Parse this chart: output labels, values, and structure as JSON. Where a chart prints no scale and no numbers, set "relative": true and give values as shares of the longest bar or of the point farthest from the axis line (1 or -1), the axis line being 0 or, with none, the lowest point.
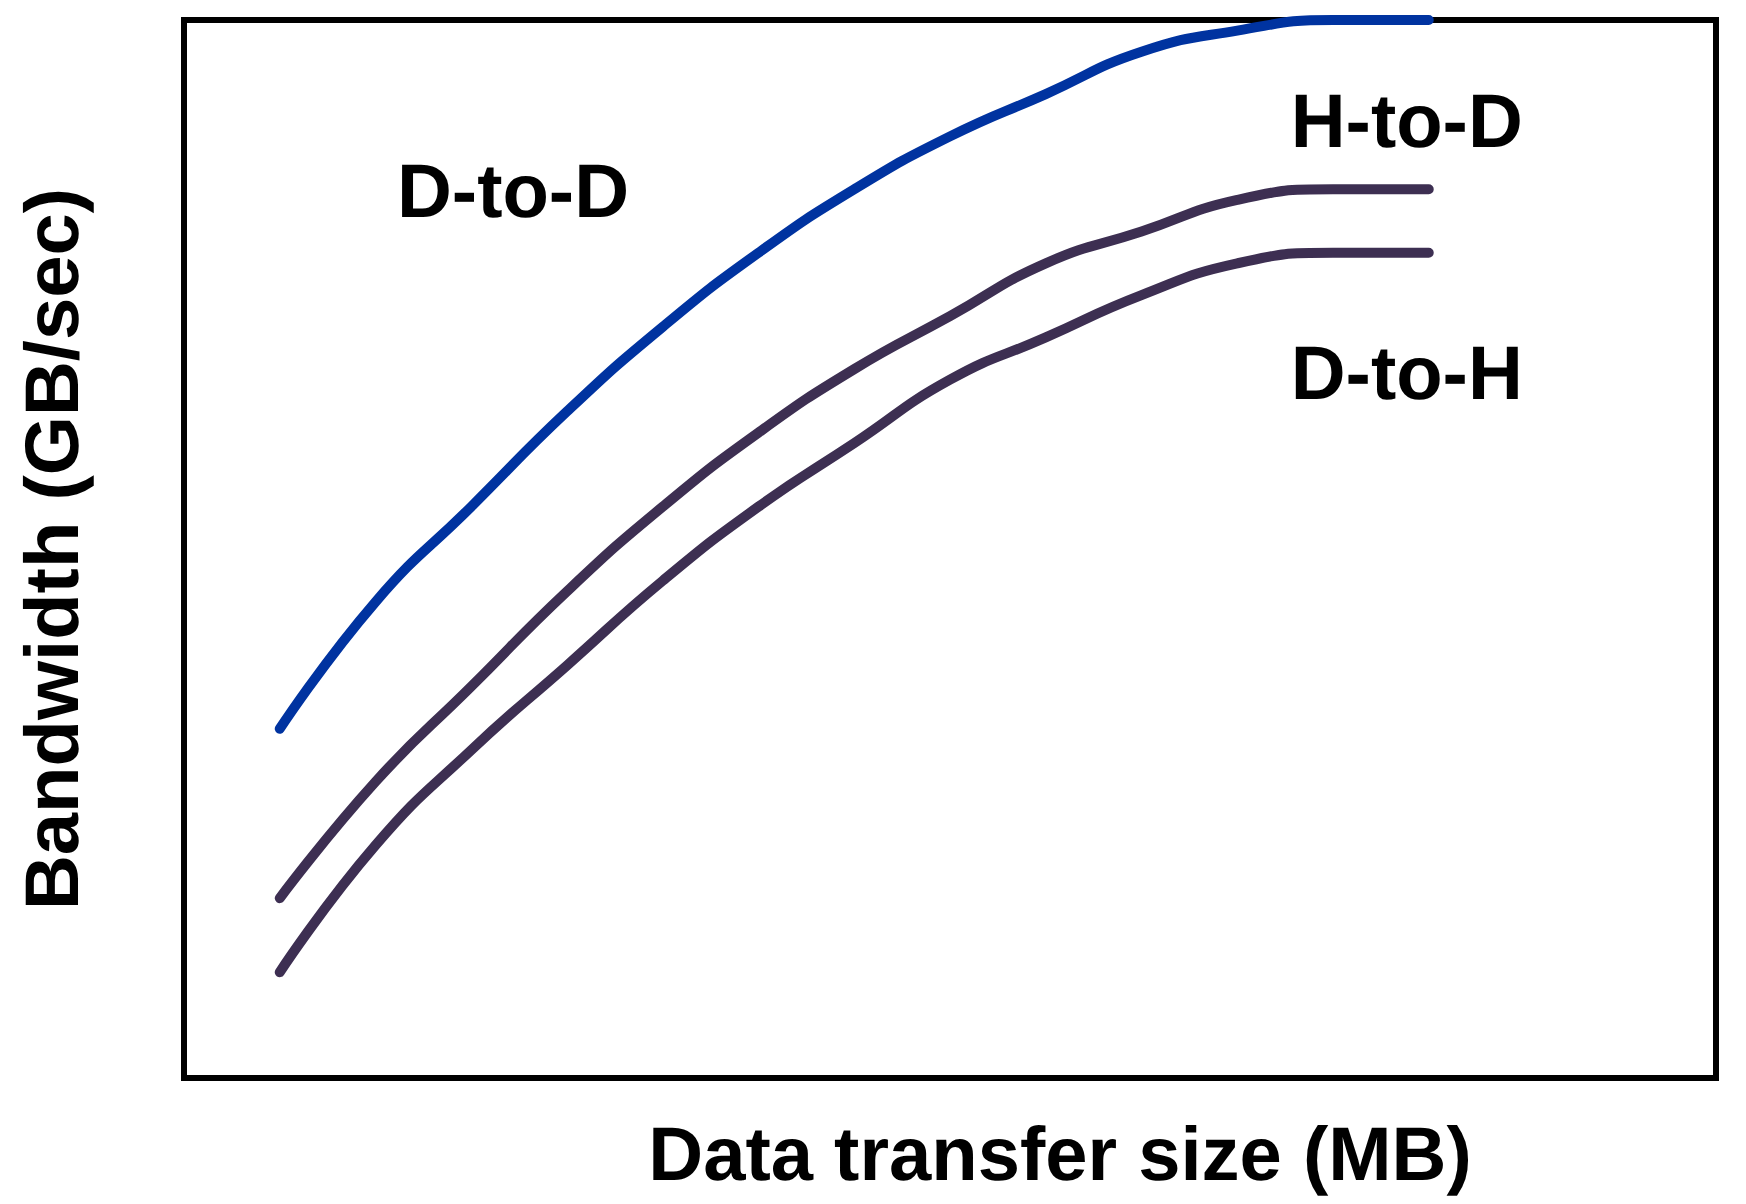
{
  "chart_data": {
    "type": "line",
    "relative": true,
    "xlabel": "Data transfer size (MB)",
    "ylabel": "Bandwidth (GB/sec)",
    "categories": [
      null,
      null,
      null,
      null,
      null,
      null,
      null,
      null,
      null,
      null,
      null,
      null,
      null,
      null,
      null,
      null,
      null
    ],
    "series": [
      {
        "name": "D-to-D",
        "color": "#0033a0",
        "values": [
          null,
          0.33,
          0.45,
          0.54,
          0.63,
          0.71,
          0.78,
          0.84,
          0.89,
          0.93,
          0.97,
          0.99,
          1,
          1,
          null,
          null,
          null
        ]
      },
      {
        "name": "H-to-D",
        "color": "#3d2f52",
        "values": [
          null,
          0.17,
          0.28,
          0.37,
          0.46,
          0.54,
          0.61,
          0.67,
          0.72,
          0.77,
          0.8,
          0.83,
          0.84,
          0.84,
          null,
          null,
          null
        ]
      },
      {
        "name": "D-to-H",
        "color": "#3d2f52",
        "values": [
          null,
          0.1,
          0.22,
          0.31,
          0.39,
          0.47,
          0.54,
          0.6,
          0.66,
          0.7,
          0.74,
          0.77,
          0.78,
          0.78,
          null,
          null,
          null
        ]
      }
    ]
  }
}
